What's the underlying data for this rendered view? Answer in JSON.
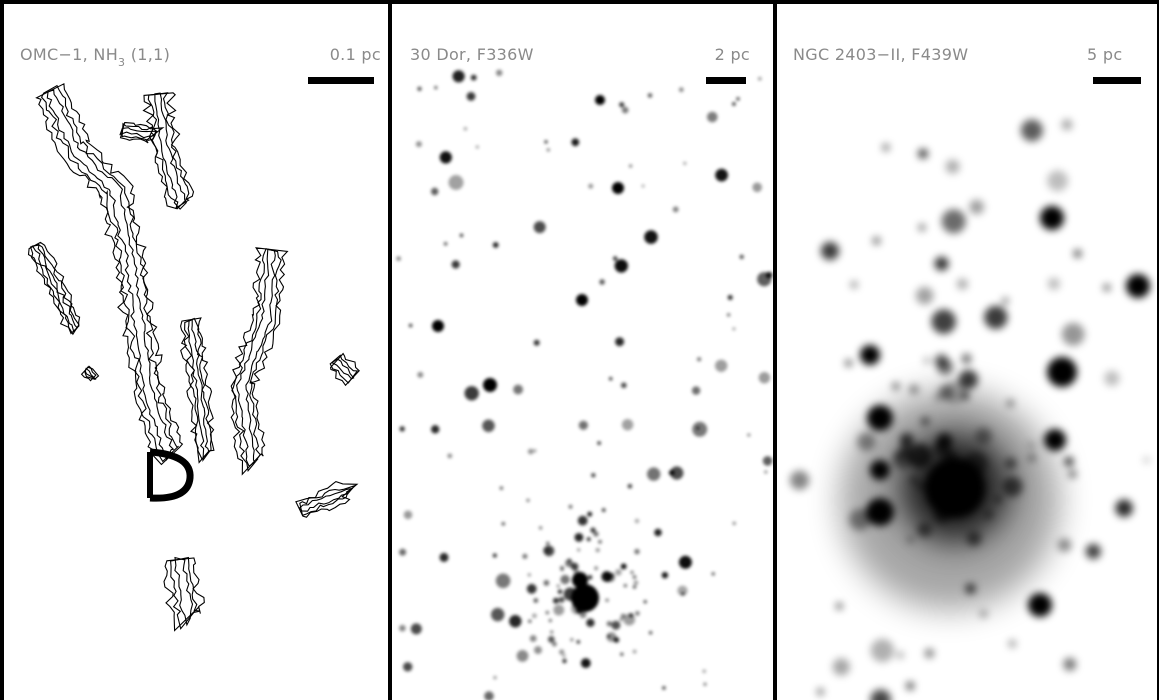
{
  "panels": [
    {
      "label_parts": [
        "OMC−1, NH",
        "3",
        " (1,1)"
      ],
      "scale": "0.1 pc"
    },
    {
      "label": "30 Dor, F336W",
      "scale": "2 pc"
    },
    {
      "label": "NGC 2403−II, F439W",
      "scale": "5 pc"
    }
  ]
}
